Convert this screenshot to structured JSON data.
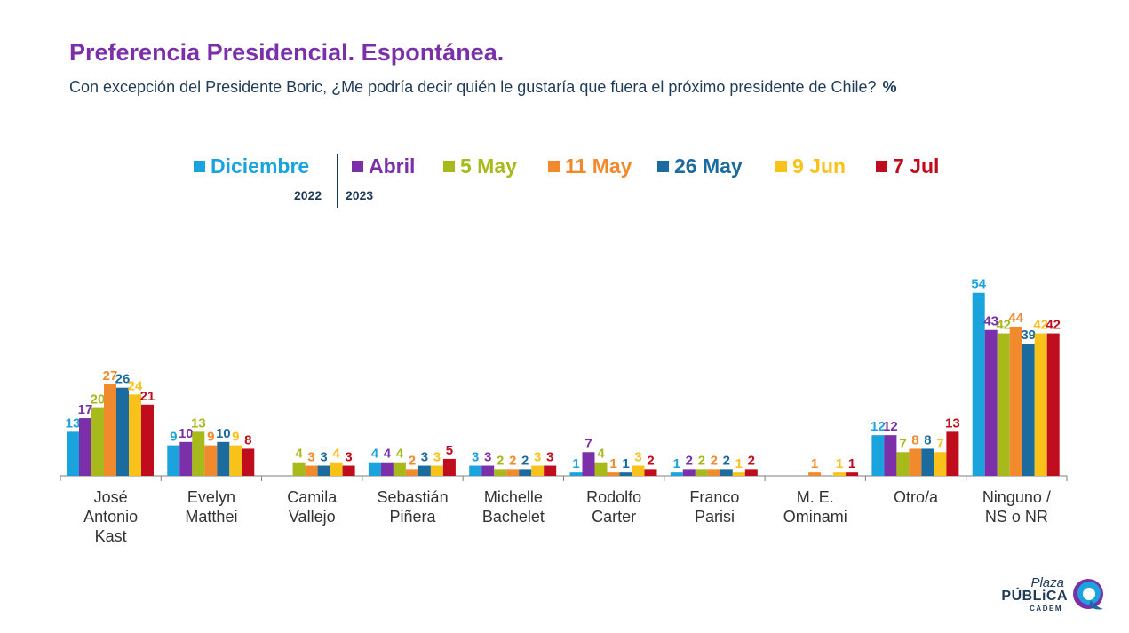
{
  "header": {
    "title": "Preferencia Presidencial. Espontánea.",
    "subtitle": "Con excepción del Presidente Boric, ¿Me podría decir quién le gustaría que fuera el próximo presidente de Chile?",
    "unit": "%"
  },
  "legend_years": {
    "left": "2022",
    "right": "2023"
  },
  "logo": {
    "line1": "Plaza",
    "line2": "PÚBLiCA",
    "line3": "CADEM",
    "icon": "plaza-publica-swirl-icon"
  },
  "chart_data": {
    "type": "bar",
    "categories": [
      "José Antonio Kast",
      "Evelyn Matthei",
      "Camila Vallejo",
      "Sebastián Piñera",
      "Michelle Bachelet",
      "Rodolfo Carter",
      "Franco Parisi",
      "M. E. Ominami",
      "Otro/a",
      "Ninguno / NS o NR"
    ],
    "category_lines": [
      [
        "José",
        "Antonio",
        "Kast"
      ],
      [
        "Evelyn",
        "Matthei"
      ],
      [
        "Camila",
        "Vallejo"
      ],
      [
        "Sebastián",
        "Piñera"
      ],
      [
        "Michelle",
        "Bachelet"
      ],
      [
        "Rodolfo",
        "Carter"
      ],
      [
        "Franco",
        "Parisi"
      ],
      [
        "M. E.",
        "Ominami"
      ],
      [
        "Otro/a"
      ],
      [
        "Ninguno /",
        "NS o NR"
      ]
    ],
    "series": [
      {
        "name": "Diciembre",
        "color": "#1aa3dc",
        "values": [
          13,
          9,
          null,
          4,
          3,
          1,
          1,
          null,
          12,
          54
        ]
      },
      {
        "name": "Abril",
        "color": "#7b2fa8",
        "values": [
          17,
          10,
          null,
          4,
          3,
          7,
          2,
          null,
          12,
          43
        ]
      },
      {
        "name": "5 May",
        "color": "#a8b91c",
        "values": [
          20,
          13,
          4,
          4,
          2,
          4,
          2,
          null,
          7,
          42
        ]
      },
      {
        "name": "11 May",
        "color": "#f08a2c",
        "values": [
          27,
          9,
          3,
          2,
          2,
          1,
          2,
          1,
          8,
          44
        ]
      },
      {
        "name": "26 May",
        "color": "#1c6b9e",
        "values": [
          26,
          10,
          3,
          3,
          2,
          1,
          2,
          null,
          8,
          39
        ]
      },
      {
        "name": "9 Jun",
        "color": "#f9c21a",
        "values": [
          24,
          9,
          4,
          3,
          3,
          3,
          1,
          1,
          7,
          42
        ]
      },
      {
        "name": "7 Jul",
        "color": "#c00d1e",
        "values": [
          21,
          8,
          3,
          5,
          3,
          2,
          2,
          1,
          13,
          42
        ]
      }
    ],
    "ylim": [
      0,
      60
    ],
    "grid": false,
    "legend_position": "top"
  }
}
